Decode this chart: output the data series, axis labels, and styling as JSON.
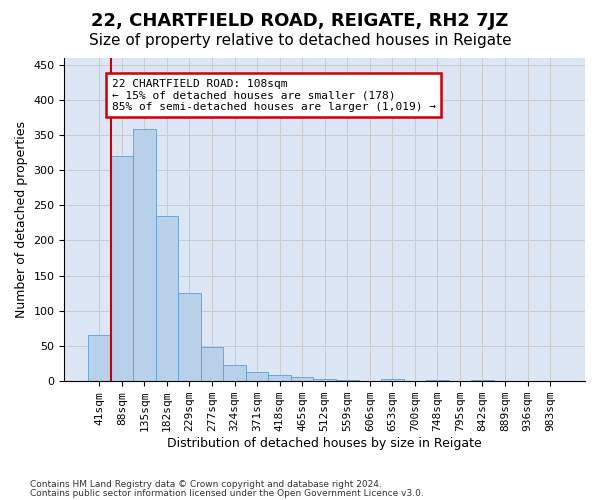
{
  "title1": "22, CHARTFIELD ROAD, REIGATE, RH2 7JZ",
  "title2": "Size of property relative to detached houses in Reigate",
  "xlabel": "Distribution of detached houses by size in Reigate",
  "ylabel": "Number of detached properties",
  "footer1": "Contains HM Land Registry data © Crown copyright and database right 2024.",
  "footer2": "Contains public sector information licensed under the Open Government Licence v3.0.",
  "bin_labels": [
    "41sqm",
    "88sqm",
    "135sqm",
    "182sqm",
    "229sqm",
    "277sqm",
    "324sqm",
    "371sqm",
    "418sqm",
    "465sqm",
    "512sqm",
    "559sqm",
    "606sqm",
    "653sqm",
    "700sqm",
    "748sqm",
    "795sqm",
    "842sqm",
    "889sqm",
    "936sqm",
    "983sqm"
  ],
  "bar_heights": [
    65,
    320,
    358,
    235,
    125,
    48,
    23,
    13,
    9,
    6,
    3,
    2,
    1,
    3,
    1,
    2,
    1,
    2,
    1,
    1,
    1
  ],
  "bar_color": "#b8d0ea",
  "bar_edge_color": "#5a9fd4",
  "annotation_title": "22 CHARTFIELD ROAD: 108sqm",
  "annotation_line1": "← 15% of detached houses are smaller (178)",
  "annotation_line2": "85% of semi-detached houses are larger (1,019) →",
  "annotation_box_color": "#ffffff",
  "annotation_box_edge": "#cc0000",
  "red_line_x": 0.5,
  "ylim": [
    0,
    460
  ],
  "yticks": [
    0,
    50,
    100,
    150,
    200,
    250,
    300,
    350,
    400,
    450
  ],
  "grid_color": "#cccccc",
  "bg_color": "#dce6f5",
  "title1_fontsize": 13,
  "title2_fontsize": 11,
  "axis_fontsize": 9,
  "tick_fontsize": 8
}
